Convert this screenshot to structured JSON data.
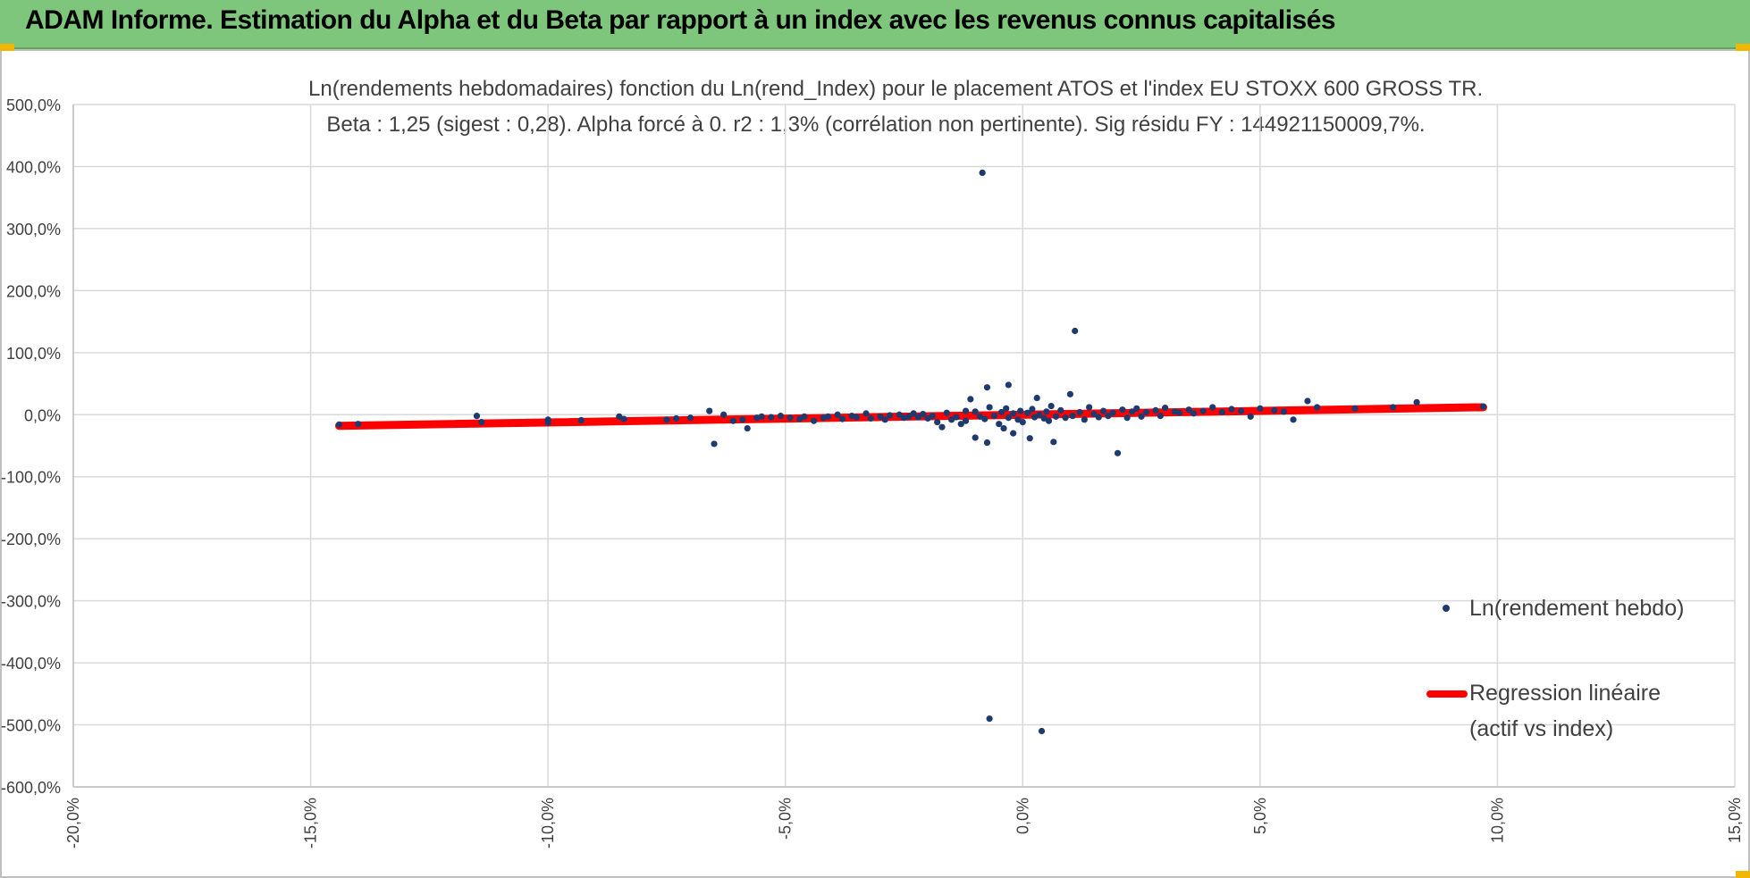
{
  "banner": {
    "title": "ADAM Informe. Estimation du Alpha et du Beta par rapport à un index avec les revenus connus capitalisés",
    "color": "#7dc67c"
  },
  "chart_data": {
    "type": "scatter",
    "title_line1": "Ln(rendements hebdomadaires) fonction du Ln(rend_Index) pour le placement ATOS  et l'index EU STOXX 600 GROSS TR.",
    "title_line2": "Beta : 1,25 (sigest : 0,28). Alpha forcé à 0. r2 : 1,3% (corrélation non pertinente). Sig résidu FY : 144921150009,7%.",
    "xlim": [
      -20,
      15
    ],
    "ylim": [
      -600,
      500
    ],
    "x_ticks": [
      -20,
      -15,
      -10,
      -5,
      0,
      5,
      10,
      15
    ],
    "x_tick_labels": [
      "-20,0%",
      "-15,0%",
      "-10,0%",
      "-5,0%",
      "0,0%",
      "5,0%",
      "10,0%",
      "15,0%"
    ],
    "y_ticks": [
      500,
      400,
      300,
      200,
      100,
      0,
      -100,
      -200,
      -300,
      -400,
      -500,
      -600
    ],
    "y_tick_labels": [
      "500,0%",
      "400,0%",
      "300,0%",
      "200,0%",
      "100,0%",
      "0,0%",
      "-100,0%",
      "-200,0%",
      "-300,0%",
      "-400,0%",
      "-500,0%",
      "-600,0%"
    ],
    "grid": true,
    "legend_position": "right",
    "series": [
      {
        "name": "Ln(rendement hebdo)",
        "kind": "scatter",
        "color": "#1f3a6e",
        "points": [
          [
            -14.4,
            -16
          ],
          [
            -14.0,
            -15
          ],
          [
            -11.5,
            -2
          ],
          [
            -11.4,
            -12
          ],
          [
            -10.0,
            -8
          ],
          [
            -10.0,
            -13
          ],
          [
            -9.3,
            -9
          ],
          [
            -8.5,
            -3
          ],
          [
            -8.4,
            -7
          ],
          [
            -7.5,
            -8
          ],
          [
            -7.3,
            -6
          ],
          [
            -7.0,
            -5
          ],
          [
            -6.6,
            6
          ],
          [
            -6.5,
            -47
          ],
          [
            -6.3,
            0
          ],
          [
            -6.1,
            -10
          ],
          [
            -5.9,
            -8
          ],
          [
            -5.8,
            -22
          ],
          [
            -5.6,
            -5
          ],
          [
            -5.5,
            -3
          ],
          [
            -5.3,
            -4
          ],
          [
            -5.1,
            -2
          ],
          [
            -4.9,
            -5
          ],
          [
            -4.7,
            -7
          ],
          [
            -4.6,
            -3
          ],
          [
            -4.4,
            -10
          ],
          [
            -4.2,
            -5
          ],
          [
            -4.1,
            -3
          ],
          [
            -3.9,
            0
          ],
          [
            -3.8,
            -7
          ],
          [
            -3.6,
            -2
          ],
          [
            -3.5,
            -4
          ],
          [
            -3.3,
            2
          ],
          [
            -3.2,
            -6
          ],
          [
            -3.0,
            -3
          ],
          [
            -2.9,
            -8
          ],
          [
            -2.8,
            -1
          ],
          [
            -2.6,
            0
          ],
          [
            -2.5,
            -5
          ],
          [
            -2.4,
            -3
          ],
          [
            -2.3,
            2
          ],
          [
            -2.2,
            -4
          ],
          [
            -2.1,
            1
          ],
          [
            -2.0,
            -6
          ],
          [
            -1.9,
            -2
          ],
          [
            -1.8,
            -12
          ],
          [
            -1.7,
            -20
          ],
          [
            -1.6,
            3
          ],
          [
            -1.5,
            -8
          ],
          [
            -1.4,
            -4
          ],
          [
            -1.3,
            -15
          ],
          [
            -1.2,
            6
          ],
          [
            -1.2,
            -10
          ],
          [
            -1.1,
            25
          ],
          [
            -1.0,
            -37
          ],
          [
            -1.0,
            5
          ],
          [
            -0.9,
            -3
          ],
          [
            -0.85,
            390
          ],
          [
            -0.8,
            -7
          ],
          [
            -0.75,
            44
          ],
          [
            -0.75,
            -45
          ],
          [
            -0.7,
            -490
          ],
          [
            -0.7,
            12
          ],
          [
            -0.6,
            -2
          ],
          [
            -0.5,
            -15
          ],
          [
            -0.45,
            4
          ],
          [
            -0.4,
            -22
          ],
          [
            -0.35,
            10
          ],
          [
            -0.3,
            48
          ],
          [
            -0.3,
            -5
          ],
          [
            -0.2,
            2
          ],
          [
            -0.2,
            -30
          ],
          [
            -0.1,
            -8
          ],
          [
            -0.05,
            6
          ],
          [
            0.0,
            -12
          ],
          [
            0.1,
            3
          ],
          [
            0.15,
            -38
          ],
          [
            0.2,
            9
          ],
          [
            0.25,
            -4
          ],
          [
            0.3,
            27
          ],
          [
            0.35,
            0
          ],
          [
            0.4,
            -510
          ],
          [
            0.45,
            -6
          ],
          [
            0.5,
            5
          ],
          [
            0.55,
            -10
          ],
          [
            0.6,
            14
          ],
          [
            0.65,
            -44
          ],
          [
            0.7,
            -3
          ],
          [
            0.8,
            7
          ],
          [
            0.9,
            -5
          ],
          [
            1.0,
            33
          ],
          [
            1.05,
            -2
          ],
          [
            1.1,
            135
          ],
          [
            1.2,
            4
          ],
          [
            1.3,
            -8
          ],
          [
            1.4,
            12
          ],
          [
            1.5,
            1
          ],
          [
            1.6,
            -4
          ],
          [
            1.7,
            6
          ],
          [
            1.8,
            -2
          ],
          [
            1.9,
            3
          ],
          [
            2.0,
            -62
          ],
          [
            2.1,
            8
          ],
          [
            2.2,
            -5
          ],
          [
            2.3,
            5
          ],
          [
            2.4,
            10
          ],
          [
            2.5,
            -3
          ],
          [
            2.6,
            4
          ],
          [
            2.8,
            7
          ],
          [
            2.9,
            -2
          ],
          [
            3.0,
            11
          ],
          [
            3.2,
            5
          ],
          [
            3.3,
            3
          ],
          [
            3.5,
            8
          ],
          [
            3.6,
            2
          ],
          [
            3.8,
            6
          ],
          [
            4.0,
            12
          ],
          [
            4.2,
            4
          ],
          [
            4.4,
            9
          ],
          [
            4.6,
            6
          ],
          [
            4.8,
            -3
          ],
          [
            5.0,
            10
          ],
          [
            5.3,
            7
          ],
          [
            5.5,
            5
          ],
          [
            5.7,
            -8
          ],
          [
            6.0,
            22
          ],
          [
            6.2,
            12
          ],
          [
            7.0,
            10
          ],
          [
            7.8,
            12
          ],
          [
            8.3,
            20
          ],
          [
            9.7,
            13
          ]
        ]
      },
      {
        "name": "Regression linéaire",
        "name_line2": "(actif vs index)",
        "kind": "line",
        "color": "#ff0000",
        "points": [
          [
            -14.4,
            -18
          ],
          [
            9.7,
            12
          ]
        ]
      }
    ]
  }
}
